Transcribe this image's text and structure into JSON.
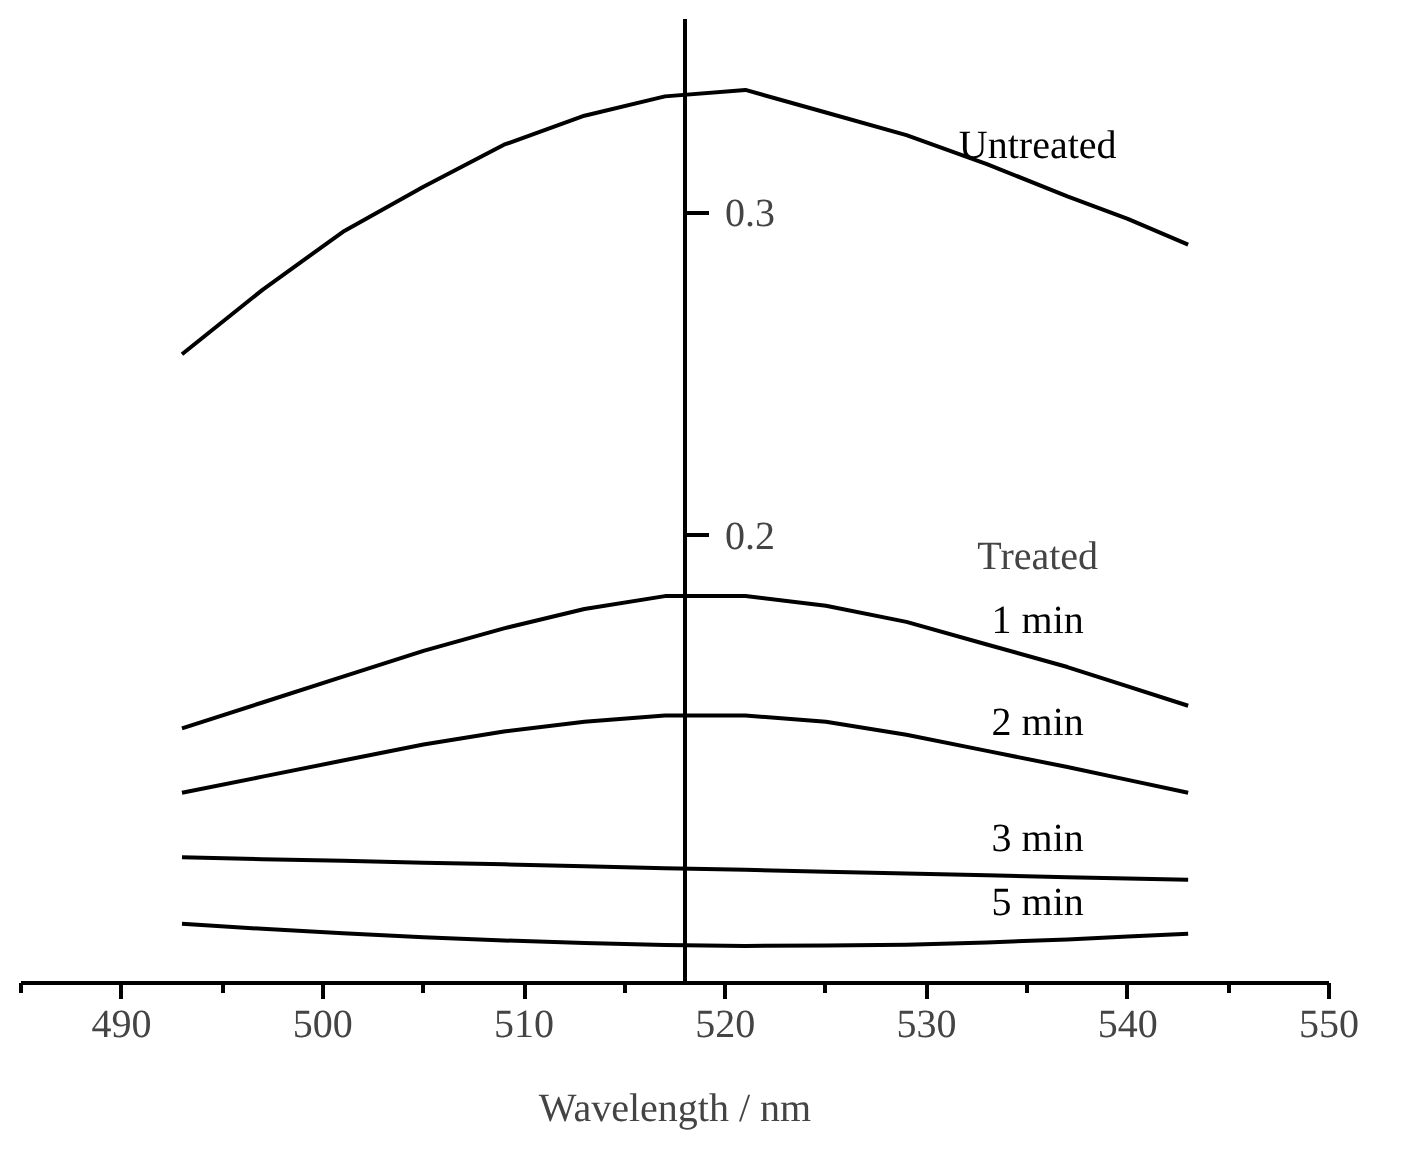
{
  "chart_data": {
    "type": "line",
    "xlabel": "Wavelength / nm",
    "xlim": [
      485,
      550
    ],
    "xticks": [
      {
        "value": 485,
        "label": null
      },
      490,
      {
        "value": 495,
        "label": null
      },
      500,
      {
        "value": 505,
        "label": null
      },
      510,
      {
        "value": 515,
        "label": null
      },
      520,
      {
        "value": 525,
        "label": null
      },
      530,
      {
        "value": 535,
        "label": null
      },
      540,
      {
        "value": 545,
        "label": null
      },
      550
    ],
    "ylim": [
      0.061,
      0.36
    ],
    "yticks": [
      0.2,
      0.3
    ],
    "grid": false,
    "marker": "none",
    "line_style": "solid",
    "x": [
      493,
      497,
      501,
      505,
      509,
      513,
      517,
      521,
      525,
      529,
      533,
      537,
      540,
      543
    ],
    "series": [
      {
        "name": "Untreated",
        "color": "#000000",
        "values": [
          0.256,
          0.276,
          0.294,
          0.308,
          0.321,
          0.33,
          0.336,
          0.338,
          0.331,
          0.324,
          0.315,
          0.305,
          0.298,
          0.29
        ]
      },
      {
        "name": "1 min",
        "color": "#000000",
        "values": [
          0.14,
          0.148,
          0.156,
          0.164,
          0.171,
          0.177,
          0.181,
          0.181,
          0.178,
          0.173,
          0.166,
          0.159,
          0.153,
          0.147
        ]
      },
      {
        "name": "2 min",
        "color": "#000000",
        "values": [
          0.12,
          0.125,
          0.13,
          0.135,
          0.139,
          0.142,
          0.144,
          0.144,
          0.142,
          0.138,
          0.133,
          0.128,
          0.124,
          0.12
        ]
      },
      {
        "name": "3 min",
        "color": "#000000",
        "values": [
          0.1,
          0.0994,
          0.0989,
          0.0983,
          0.0978,
          0.0972,
          0.0966,
          0.0961,
          0.0955,
          0.095,
          0.0944,
          0.0938,
          0.0934,
          0.093
        ]
      },
      {
        "name": "5 min",
        "color": "#000000",
        "values": [
          0.0794,
          0.0778,
          0.0764,
          0.0752,
          0.0742,
          0.0734,
          0.0728,
          0.0725,
          0.0726,
          0.0729,
          0.0736,
          0.0745,
          0.0754,
          0.0763
        ]
      }
    ],
    "annotations": [
      "Treated"
    ]
  }
}
